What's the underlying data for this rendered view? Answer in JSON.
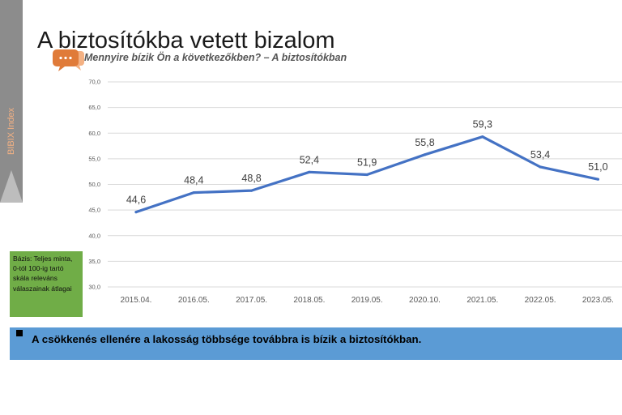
{
  "side_label": "BIBIX Index",
  "title": "A biztosítókba vetett bizalom",
  "subtitle": "Mennyire bízik Ön a következőkben? – A biztosítókban",
  "basis_note": "Bázis: Teljes minta, 0-tól 100-ig tartó skála releváns válaszainak átlagai",
  "conclusion": "A csökkenés ellenére a lakosság többsége továbbra is bízik a biztosítókban.",
  "colors": {
    "line": "#4472c4",
    "basis_box": "#70ad47",
    "bottom_bar": "#5b9bd5",
    "side_strip": "#8c8c8c",
    "side_label": "#f4b183",
    "chat_icon": "#e07b39"
  },
  "chart_data": {
    "type": "line",
    "categories": [
      "2015.04.",
      "2016.05.",
      "2017.05.",
      "2018.05.",
      "2019.05.",
      "2020.10.",
      "2021.05.",
      "2022.05.",
      "2023.05."
    ],
    "values": [
      44.6,
      48.4,
      48.8,
      52.4,
      51.9,
      55.8,
      59.3,
      53.4,
      51.0
    ],
    "data_labels": [
      "44,6",
      "48,4",
      "48,8",
      "52,4",
      "51,9",
      "55,8",
      "59,3",
      "53,4",
      "51,0"
    ],
    "ylim": [
      30,
      70
    ],
    "yticks": [
      "30,0",
      "35,0",
      "40,0",
      "45,0",
      "50,0",
      "55,0",
      "60,0",
      "65,0",
      "70,0"
    ],
    "grid": true,
    "xlabel": "",
    "ylabel": ""
  }
}
